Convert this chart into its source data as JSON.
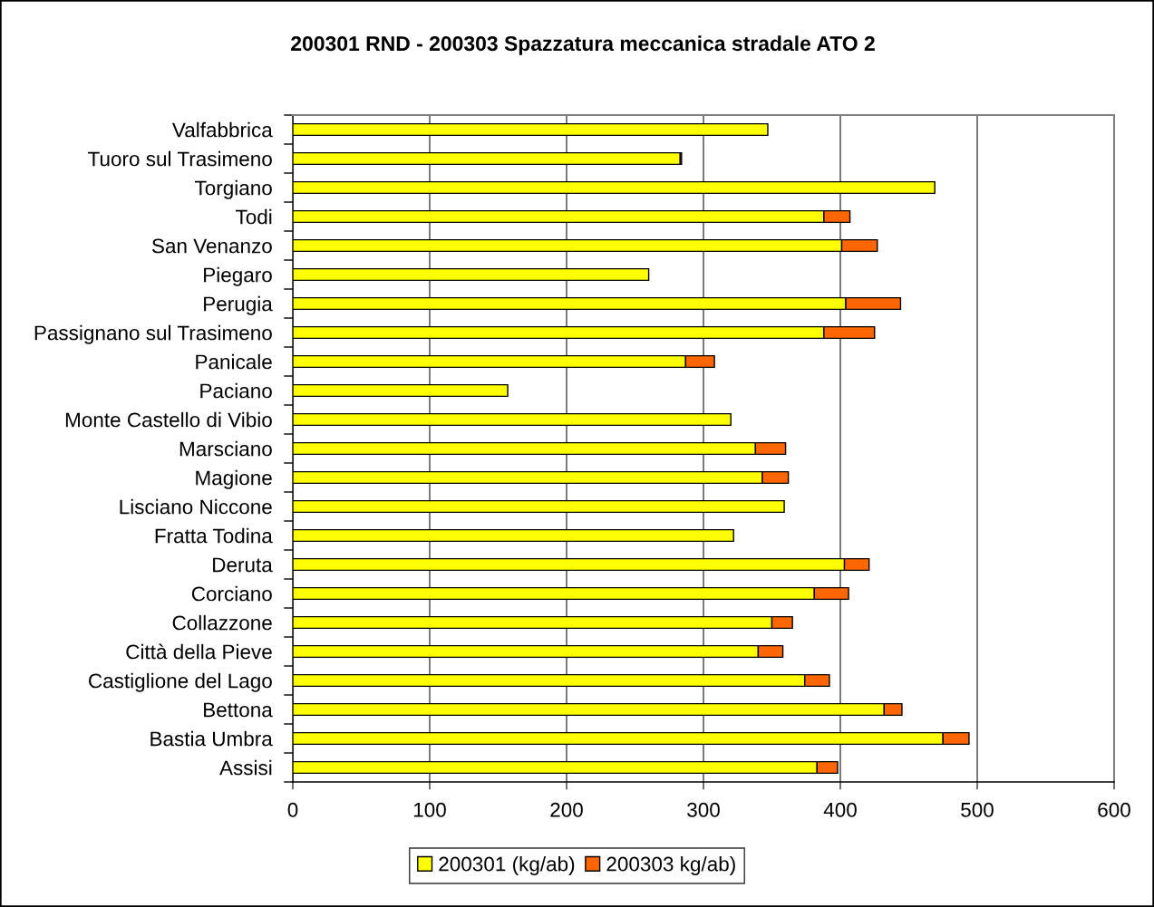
{
  "chart_data": {
    "type": "bar",
    "title": "200301 RND - 200303 Spazzatura meccanica stradale ATO 2",
    "orientation": "horizontal",
    "stacked": true,
    "categories": [
      "Valfabbrica",
      "Tuoro sul Trasimeno",
      "Torgiano",
      "Todi",
      "San Venanzo",
      "Piegaro",
      "Perugia",
      "Passignano sul Trasimeno",
      "Panicale",
      "Paciano",
      "Monte Castello di Vibio",
      "Marsciano",
      "Magione",
      "Lisciano Niccone",
      "Fratta Todina",
      "Deruta",
      "Corciano",
      "Collazzone",
      "Città della Pieve",
      "Castiglione del Lago",
      "Bettona",
      "Bastia Umbra",
      "Assisi"
    ],
    "series": [
      {
        "name": "200301 (kg/ab)",
        "color": "#ffff00",
        "values": [
          347,
          283,
          469,
          388,
          401,
          260,
          404,
          388,
          287,
          157,
          320,
          338,
          343,
          359,
          322,
          403,
          381,
          350,
          340,
          374,
          432,
          475,
          383
        ]
      },
      {
        "name": "200303 kg/ab)",
        "color": "#ff6600",
        "values": [
          null,
          1,
          null,
          19,
          26,
          null,
          40,
          37,
          21,
          null,
          null,
          22,
          19,
          null,
          null,
          18,
          25,
          15,
          18,
          18,
          13,
          19,
          15
        ]
      }
    ],
    "xlim": [
      0,
      600
    ],
    "xticks": [
      0,
      100,
      200,
      300,
      400,
      500,
      600
    ],
    "grid": "x",
    "legend": "bottom"
  }
}
